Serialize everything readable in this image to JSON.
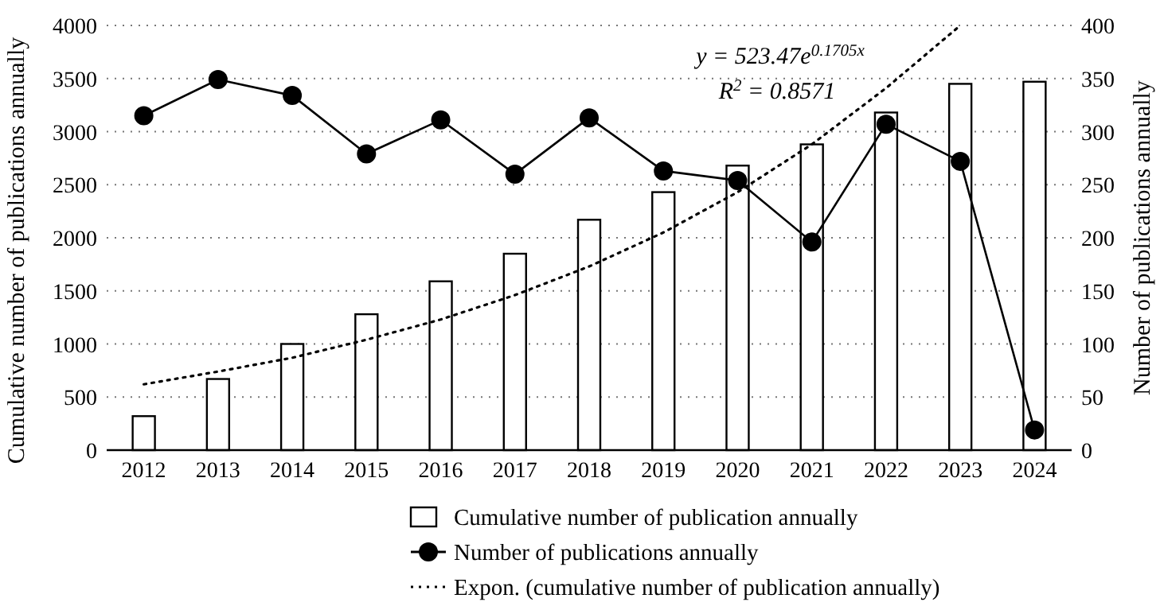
{
  "chart_data": {
    "type": "bar",
    "categories": [
      "2012",
      "2013",
      "2014",
      "2015",
      "2016",
      "2017",
      "2018",
      "2019",
      "2020",
      "2021",
      "2022",
      "2023",
      "2024"
    ],
    "ylabel": "Cumulative number of publications annually",
    "y2label": "Number of publications annually",
    "ylim": [
      0,
      4000
    ],
    "yticks": [
      0,
      500,
      1000,
      1500,
      2000,
      2500,
      3000,
      3500,
      4000
    ],
    "y2lim": [
      0,
      400
    ],
    "y2ticks": [
      0,
      50,
      100,
      150,
      200,
      250,
      300,
      350,
      400
    ],
    "grid": "y",
    "legend": "bottom",
    "series": [
      {
        "name": "Cumulative number of publication annually",
        "color": "#ffffff",
        "values": [
          320,
          670,
          1000,
          1280,
          1590,
          1850,
          2170,
          2430,
          2680,
          2880,
          3180,
          3450,
          3470
        ]
      },
      {
        "name": "Number of publications annually",
        "type": "line",
        "axis": "y2",
        "color": "#000000",
        "marker": "circle",
        "line_style": "solid",
        "values": [
          315,
          349,
          334,
          279,
          311,
          260,
          313,
          263,
          254,
          196,
          307,
          272,
          19
        ]
      },
      {
        "name": "Expon. (cumulative number of publication annually)",
        "type": "line",
        "color": "#000000",
        "marker": "none",
        "line_style": "dotted",
        "values": [
          620,
          740,
          870,
          1040,
          1230,
          1460,
          1730,
          2050,
          2430,
          2880,
          3410,
          4000,
          null
        ]
      }
    ],
    "annotations": [
      "y = 523.47e$^{0.1705x}$",
      "R$^{2}$ = 0.8571"
    ]
  }
}
